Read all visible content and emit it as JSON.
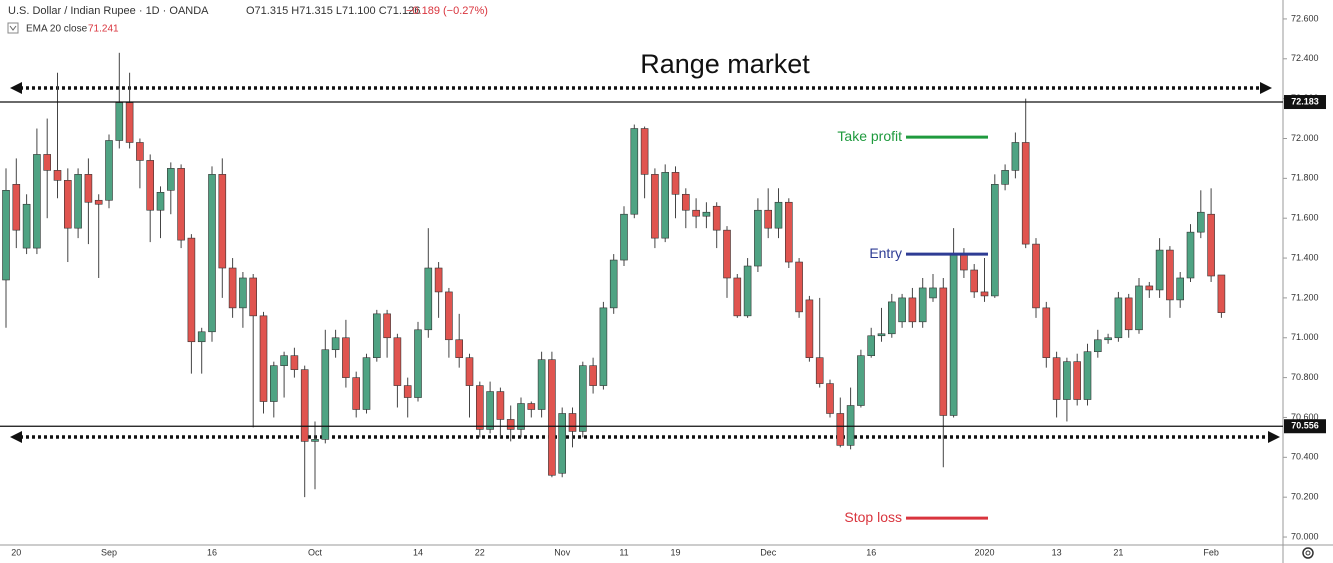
{
  "chart_data": {
    "type": "candlestick",
    "title": "Range market",
    "symbol": "U.S. Dollar / Indian Rupee · 1D · OANDA",
    "ohlc_text": "O71.315 H71.315 L71.100 C71.126",
    "change_text": "−0.189 (−0.27%)",
    "indicator": "EMA 20 close",
    "indicator_value": "71.241",
    "up_color": "#4fa383",
    "down_color": "#e0544f",
    "categories": [
      null,
      "20",
      null,
      null,
      null,
      null,
      null,
      null,
      null,
      null,
      "Sep",
      null,
      null,
      null,
      null,
      null,
      null,
      null,
      null,
      null,
      "16",
      null,
      null,
      null,
      null,
      null,
      null,
      null,
      null,
      null,
      "Oct",
      null,
      null,
      null,
      null,
      null,
      null,
      null,
      null,
      null,
      "14",
      null,
      null,
      null,
      null,
      null,
      "22",
      null,
      null,
      null,
      null,
      null,
      null,
      null,
      "Nov",
      null,
      null,
      null,
      null,
      null,
      "11",
      null,
      null,
      null,
      null,
      "19",
      null,
      null,
      null,
      null,
      null,
      null,
      null,
      null,
      "Dec",
      null,
      null,
      null,
      null,
      null,
      null,
      null,
      null,
      null,
      "16",
      null,
      null,
      null,
      null,
      null,
      null,
      null,
      null,
      null,
      null,
      "2020",
      null,
      null,
      null,
      null,
      null,
      null,
      "13",
      null,
      null,
      null,
      null,
      null,
      "21",
      null,
      null,
      null,
      null,
      null,
      null,
      null,
      null,
      "Feb",
      null
    ],
    "open": [
      71.29,
      71.77,
      71.45,
      71.45,
      71.92,
      71.84,
      71.79,
      71.55,
      71.82,
      71.69,
      71.69,
      71.99,
      72.18,
      71.98,
      71.89,
      71.64,
      71.74,
      71.85,
      71.5,
      70.98,
      71.03,
      71.82,
      71.35,
      71.15,
      71.3,
      71.11,
      70.68,
      70.86,
      70.91,
      70.84,
      70.48,
      70.49,
      70.94,
      71.0,
      70.8,
      70.64,
      70.9,
      71.12,
      71.0,
      70.76,
      70.7,
      71.04,
      71.35,
      71.23,
      70.99,
      70.9,
      70.76,
      70.54,
      70.73,
      70.59,
      70.54,
      70.67,
      70.64,
      70.89,
      70.32,
      70.62,
      70.53,
      70.86,
      70.76,
      71.15,
      71.39,
      71.62,
      72.05,
      71.82,
      71.5,
      71.83,
      71.72,
      71.64,
      71.61,
      71.66,
      71.54,
      71.3,
      71.11,
      71.36,
      71.64,
      71.55,
      71.68,
      71.38,
      71.19,
      70.9,
      70.77,
      70.62,
      70.46,
      70.66,
      70.91,
      71.01,
      71.02,
      71.08,
      71.2,
      71.08,
      71.2,
      71.25,
      70.61,
      71.42,
      71.34,
      71.23,
      71.21,
      71.77,
      71.84,
      71.98,
      71.47,
      71.15,
      70.9,
      70.69,
      70.88,
      70.69,
      70.93,
      70.99,
      71.0,
      71.2,
      71.04,
      71.26,
      71.24,
      71.44,
      71.19,
      71.3,
      71.53,
      71.62,
      71.315
    ],
    "high": [
      71.85,
      71.9,
      71.72,
      72.05,
      72.1,
      72.33,
      71.85,
      71.85,
      71.9,
      71.72,
      72.02,
      72.43,
      72.33,
      72.0,
      71.92,
      71.76,
      71.88,
      71.87,
      71.52,
      71.05,
      71.86,
      71.9,
      71.4,
      71.33,
      71.32,
      71.13,
      70.88,
      70.93,
      70.95,
      70.86,
      70.58,
      71.04,
      71.04,
      71.09,
      70.83,
      70.92,
      71.14,
      71.14,
      71.02,
      70.8,
      71.08,
      71.55,
      71.38,
      71.25,
      71.12,
      70.92,
      70.78,
      70.78,
      70.75,
      70.66,
      70.7,
      70.68,
      70.93,
      70.93,
      70.65,
      70.65,
      70.88,
      70.9,
      71.18,
      71.42,
      71.66,
      72.07,
      72.06,
      71.85,
      71.87,
      71.86,
      71.75,
      71.7,
      71.68,
      71.68,
      71.56,
      71.32,
      71.4,
      71.7,
      71.75,
      71.75,
      71.7,
      71.4,
      71.21,
      71.2,
      70.79,
      70.7,
      70.75,
      70.94,
      71.05,
      71.15,
      71.22,
      71.22,
      71.25,
      71.3,
      71.32,
      71.3,
      71.55,
      71.45,
      71.37,
      71.4,
      71.82,
      71.87,
      72.03,
      72.2,
      71.5,
      71.18,
      70.93,
      70.9,
      70.92,
      70.97,
      71.04,
      71.02,
      71.23,
      71.22,
      71.3,
      71.28,
      71.5,
      71.46,
      71.33,
      71.57,
      71.74,
      71.75,
      71.315
    ],
    "low": [
      71.05,
      71.45,
      71.42,
      71.42,
      71.6,
      71.7,
      71.38,
      71.5,
      71.47,
      71.3,
      71.65,
      71.95,
      71.95,
      71.75,
      71.48,
      71.5,
      71.62,
      71.45,
      70.82,
      70.82,
      70.98,
      71.2,
      71.1,
      71.05,
      70.55,
      70.62,
      70.6,
      70.7,
      70.8,
      70.2,
      70.24,
      70.47,
      70.9,
      70.75,
      70.6,
      70.62,
      70.88,
      70.9,
      70.65,
      70.6,
      70.68,
      71.0,
      71.1,
      70.9,
      70.85,
      70.6,
      70.5,
      70.52,
      70.5,
      70.48,
      70.5,
      70.6,
      70.6,
      70.3,
      70.3,
      70.45,
      70.5,
      70.72,
      70.74,
      71.12,
      71.36,
      71.6,
      71.7,
      71.45,
      71.48,
      71.6,
      71.55,
      71.55,
      71.55,
      71.45,
      71.2,
      71.1,
      71.1,
      71.33,
      71.5,
      71.5,
      71.35,
      71.1,
      70.88,
      70.75,
      70.6,
      70.45,
      70.44,
      70.65,
      70.9,
      70.98,
      71.0,
      71.05,
      71.05,
      71.05,
      71.18,
      70.35,
      70.6,
      71.3,
      71.2,
      71.18,
      71.2,
      71.74,
      71.8,
      71.45,
      71.1,
      70.85,
      70.6,
      70.58,
      70.66,
      70.66,
      70.9,
      70.97,
      70.98,
      71.0,
      71.02,
      71.2,
      71.2,
      71.1,
      71.15,
      71.28,
      71.5,
      71.28,
      71.1
    ],
    "close": [
      71.74,
      71.54,
      71.67,
      71.92,
      71.84,
      71.79,
      71.55,
      71.82,
      71.68,
      71.67,
      71.99,
      72.18,
      71.98,
      71.89,
      71.64,
      71.73,
      71.85,
      71.49,
      70.98,
      71.03,
      71.82,
      71.35,
      71.15,
      71.3,
      71.11,
      70.68,
      70.86,
      70.91,
      70.84,
      70.48,
      70.49,
      70.94,
      71.0,
      70.8,
      70.64,
      70.9,
      71.12,
      71.0,
      70.76,
      70.7,
      71.04,
      71.35,
      71.23,
      70.99,
      70.9,
      70.76,
      70.54,
      70.73,
      70.59,
      70.54,
      70.67,
      70.64,
      70.89,
      70.31,
      70.62,
      70.53,
      70.86,
      70.76,
      71.15,
      71.39,
      71.62,
      72.05,
      71.82,
      71.5,
      71.83,
      71.72,
      71.64,
      71.61,
      71.63,
      71.54,
      71.3,
      71.11,
      71.36,
      71.64,
      71.55,
      71.68,
      71.38,
      71.13,
      70.9,
      70.77,
      70.62,
      70.46,
      70.66,
      70.91,
      71.01,
      71.02,
      71.18,
      71.2,
      71.08,
      71.25,
      71.25,
      70.61,
      71.42,
      71.34,
      71.23,
      71.21,
      71.77,
      71.84,
      71.98,
      71.47,
      71.15,
      70.9,
      70.69,
      70.88,
      70.69,
      70.93,
      70.99,
      71.0,
      71.2,
      71.04,
      71.26,
      71.24,
      71.44,
      71.19,
      71.3,
      71.53,
      71.63,
      71.31,
      71.126
    ],
    "ylim": [
      69.96,
      72.695
    ],
    "yticks": [
      {
        "value": 70,
        "label": "70.000"
      },
      {
        "value": 70.2,
        "label": "70.200"
      },
      {
        "value": 70.4,
        "label": "70.400"
      },
      {
        "value": 70.6,
        "label": "70.600"
      },
      {
        "value": 70.8,
        "label": "70.800"
      },
      {
        "value": 71,
        "label": "71.000"
      },
      {
        "value": 71.2,
        "label": "71.200"
      },
      {
        "value": 71.4,
        "label": "71.400"
      },
      {
        "value": 71.6,
        "label": "71.600"
      },
      {
        "value": 71.8,
        "label": "71.800"
      },
      {
        "value": 72,
        "label": "72.000"
      },
      {
        "value": 72.2,
        "label": "72.200"
      },
      {
        "value": 72.4,
        "label": "72.400"
      },
      {
        "value": 72.6,
        "label": "72.600"
      }
    ],
    "grid": false,
    "hlines": [
      72.183,
      70.556
    ],
    "annotations": [
      {
        "text": "Take profit",
        "value": 72.007,
        "color": "#1f9a3e"
      },
      {
        "text": "Entry",
        "value": 71.42,
        "color": "#2e3c94"
      },
      {
        "text": "Stop loss",
        "value": 70.095,
        "color": "#d9343d"
      }
    ]
  }
}
